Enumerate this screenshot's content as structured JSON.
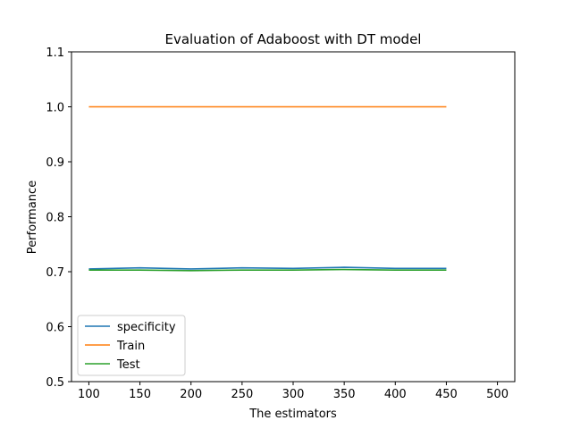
{
  "chart_data": {
    "type": "line",
    "title": "Evaluation of Adaboost with DT model",
    "xlabel": "The estimators",
    "ylabel": "Performance",
    "x": [
      100,
      150,
      200,
      250,
      300,
      350,
      400,
      450
    ],
    "xlim": [
      83,
      517
    ],
    "ylim": [
      0.5,
      1.1
    ],
    "xticks": [
      100,
      150,
      200,
      250,
      300,
      350,
      400,
      450,
      500
    ],
    "yticks": [
      0.5,
      0.6,
      0.7,
      0.8,
      0.9,
      1.0,
      1.1
    ],
    "xtick_labels": [
      "100",
      "150",
      "200",
      "250",
      "300",
      "350",
      "400",
      "450",
      "500"
    ],
    "ytick_labels": [
      "0.5",
      "0.6",
      "0.7",
      "0.8",
      "0.9",
      "1.0",
      "1.1"
    ],
    "grid": false,
    "legend_position": "lower-left",
    "series": [
      {
        "name": "specificity",
        "color": "#1f77b4",
        "values": [
          0.705,
          0.707,
          0.705,
          0.707,
          0.706,
          0.708,
          0.706,
          0.706
        ]
      },
      {
        "name": "Train",
        "color": "#ff7f0e",
        "values": [
          1.0,
          1.0,
          1.0,
          1.0,
          1.0,
          1.0,
          1.0,
          1.0
        ]
      },
      {
        "name": "Test",
        "color": "#2ca02c",
        "values": [
          0.703,
          0.703,
          0.702,
          0.703,
          0.703,
          0.704,
          0.703,
          0.703
        ]
      }
    ]
  }
}
